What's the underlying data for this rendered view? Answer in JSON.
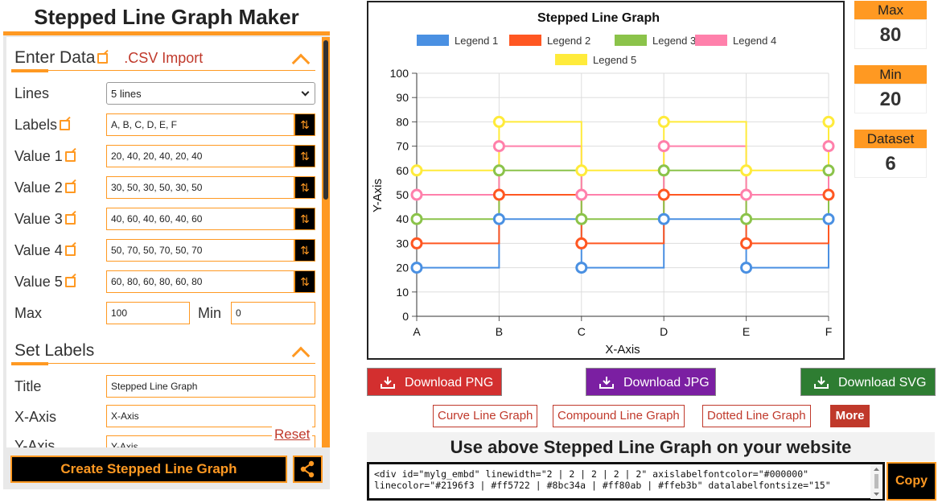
{
  "app_title": "Stepped Line Graph Maker",
  "enter_data": {
    "heading": "Enter Data",
    "csv_import": ".CSV Import",
    "lines_label": "Lines",
    "lines_value": "5 lines",
    "labels_label": "Labels",
    "labels_value": "A, B, C, D, E, F",
    "values": [
      {
        "label": "Value 1",
        "value": "20, 40, 20, 40, 20, 40"
      },
      {
        "label": "Value 2",
        "value": "30, 50, 30, 50, 30, 50"
      },
      {
        "label": "Value 3",
        "value": "40, 60, 40, 60, 40, 60"
      },
      {
        "label": "Value 4",
        "value": "50, 70, 50, 70, 50, 70"
      },
      {
        "label": "Value 5",
        "value": "60, 80, 60, 80, 60, 80"
      }
    ],
    "max_label": "Max",
    "max_value": "100",
    "min_label": "Min",
    "min_value": "0"
  },
  "set_labels": {
    "heading": "Set Labels",
    "title_label": "Title",
    "title_value": "Stepped Line Graph",
    "xaxis_label": "X-Axis",
    "xaxis_value": "X-Axis",
    "yaxis_label": "Y-Axis",
    "yaxis_value": "Y-Axis",
    "reset": "Reset"
  },
  "create_button": "Create Stepped Line Graph",
  "stats": {
    "max_label": "Max",
    "max_value": "80",
    "min_label": "Min",
    "min_value": "20",
    "dataset_label": "Dataset",
    "dataset_value": "6"
  },
  "downloads": {
    "png": "Download PNG",
    "jpg": "Download JPG",
    "svg": "Download SVG"
  },
  "alt_links": [
    "Curve Line Graph",
    "Compound Line Graph",
    "Dotted Line Graph"
  ],
  "more_button": "More",
  "embed": {
    "title": "Use above Stepped Line Graph on your website",
    "code_line1": "<div id=\"mylg_embd\" linewidth=\"2 | 2 | 2 | 2 | 2\" axislabelfontcolor=\"#000000\"",
    "code_line2": "linecolor=\"#2196f3 | #ff5722 | #8bc34a | #ff80ab | #ffeb3b\" datalabelfontsize=\"15\"",
    "copy": "Copy"
  },
  "chart_data": {
    "type": "line",
    "step": true,
    "title": "Stepped Line Graph",
    "xlabel": "X-Axis",
    "ylabel": "Y-Axis",
    "categories": [
      "A",
      "B",
      "C",
      "D",
      "E",
      "F"
    ],
    "ylim": [
      0,
      100
    ],
    "yticks": [
      0,
      10,
      20,
      30,
      40,
      50,
      60,
      70,
      80,
      90,
      100
    ],
    "legend_position": "top",
    "grid": true,
    "series": [
      {
        "name": "Legend 1",
        "color": "#4a90e2",
        "values": [
          20,
          40,
          20,
          40,
          20,
          40
        ]
      },
      {
        "name": "Legend 2",
        "color": "#ff5722",
        "values": [
          30,
          50,
          30,
          50,
          30,
          50
        ]
      },
      {
        "name": "Legend 3",
        "color": "#8bc34a",
        "values": [
          40,
          60,
          40,
          60,
          40,
          60
        ]
      },
      {
        "name": "Legend 4",
        "color": "#ff80ab",
        "values": [
          50,
          70,
          50,
          70,
          50,
          70
        ]
      },
      {
        "name": "Legend 5",
        "color": "#ffeb3b",
        "values": [
          60,
          80,
          60,
          80,
          60,
          80
        ]
      }
    ]
  },
  "colors": {
    "accent": "#ff9922",
    "link_red": "#c0392b",
    "png_btn": "#d32f2f",
    "jpg_btn": "#7b1fa2",
    "svg_btn": "#2e7d32"
  }
}
